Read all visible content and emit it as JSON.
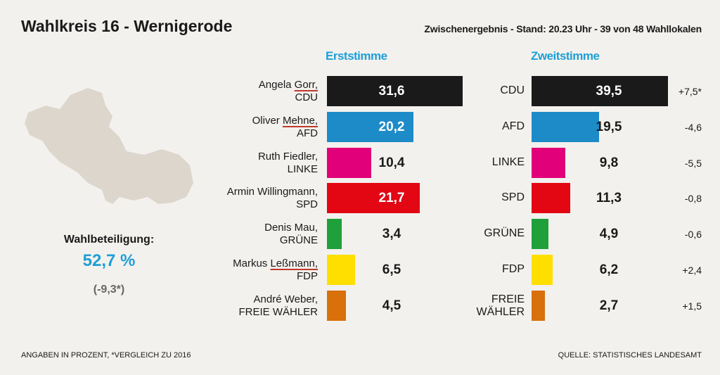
{
  "title": "Wahlkreis 16 - Wernigerode",
  "subtitle": "Zwischenergebnis - Stand: 20.23 Uhr - 39 von 48 Wahllokalen",
  "turnout": {
    "label": "Wahlbeteiligung:",
    "value": "52,7 %",
    "change": "(-9,3*)"
  },
  "footer": {
    "left": "ANGABEN IN PROZENT, *VERGLEICH ZU 2016",
    "right": "QUELLE: STATISTISCHES LANDESAMT"
  },
  "chart_data": [
    {
      "type": "bar",
      "title": "Erststimme",
      "orientation": "horizontal",
      "categories": [
        {
          "name_first": "Angela",
          "name_last": "Gorr,",
          "party": "CDU",
          "value": 31.6,
          "display": "31,6",
          "color": "#1a1a1a"
        },
        {
          "name_first": "Oliver",
          "name_last": "Mehne,",
          "party": "AFD",
          "value": 20.2,
          "display": "20,2",
          "color": "#1d8bc8"
        },
        {
          "name_first": "Ruth",
          "name_last": "Fiedler,",
          "party": "LINKE",
          "value": 10.4,
          "display": "10,4",
          "color": "#e2007a"
        },
        {
          "name_first": "Armin",
          "name_last": "Willingmann,",
          "party": "SPD",
          "value": 21.7,
          "display": "21,7",
          "color": "#e30613"
        },
        {
          "name_first": "Denis",
          "name_last": "Mau,",
          "party": "GRÜNE",
          "value": 3.4,
          "display": "3,4",
          "color": "#1fa03a"
        },
        {
          "name_first": "Markus",
          "name_last": "Leßmann,",
          "party": "FDP",
          "value": 6.5,
          "display": "6,5",
          "color": "#ffdf00"
        },
        {
          "name_first": "André",
          "name_last": "Weber,",
          "party": "FREIE WÄHLER",
          "value": 4.5,
          "display": "4,5",
          "color": "#d8700c"
        }
      ],
      "underlined": [
        "Gorr,",
        "Mehne,",
        "Leßmann,"
      ]
    },
    {
      "type": "bar",
      "title": "Zweitstimme",
      "orientation": "horizontal",
      "categories": [
        {
          "party": "CDU",
          "value": 39.5,
          "display": "39,5",
          "change": "+7,5*",
          "color": "#1a1a1a"
        },
        {
          "party": "AFD",
          "value": 19.5,
          "display": "19,5",
          "change": "-4,6",
          "color": "#1d8bc8"
        },
        {
          "party": "LINKE",
          "value": 9.8,
          "display": "9,8",
          "change": "-5,5",
          "color": "#e2007a"
        },
        {
          "party": "SPD",
          "value": 11.3,
          "display": "11,3",
          "change": "-0,8",
          "color": "#e30613"
        },
        {
          "party": "GRÜNE",
          "value": 4.9,
          "display": "4,9",
          "change": "-0,6",
          "color": "#1fa03a"
        },
        {
          "party": "FDP",
          "value": 6.2,
          "display": "6,2",
          "change": "+2,4",
          "color": "#ffdf00"
        },
        {
          "party": "FREIE\nWÄHLER",
          "value": 2.7,
          "display": "2,7",
          "change": "+1,5",
          "color": "#d8700c"
        }
      ]
    }
  ]
}
